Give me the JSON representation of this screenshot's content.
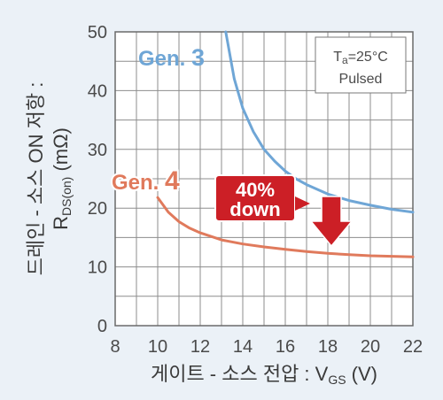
{
  "chart_data": {
    "type": "line",
    "xlabel": {
      "main": "게이트 - 소스 전압 : V",
      "sub": "GS",
      "unit": " (V)"
    },
    "ylabel": {
      "line1": "드레인 - 소스 ON 저항 :",
      "line2_main": "R",
      "line2_sub": "DS(on)",
      "line2_unit": " (mΩ)"
    },
    "xlim": [
      8,
      22
    ],
    "ylim": [
      0,
      50
    ],
    "xticks": [
      "8",
      "10",
      "12",
      "14",
      "16",
      "18",
      "20",
      "22"
    ],
    "yticks": [
      "0",
      "10",
      "20",
      "30",
      "40",
      "50"
    ],
    "grid": true,
    "series": [
      {
        "name": "Gen. 3",
        "name_text": "Gen. ",
        "name_num": "3",
        "color": "#6fa6d6",
        "x": [
          13.2,
          13.6,
          14.0,
          14.5,
          15.0,
          15.5,
          16.0,
          16.5,
          17.0,
          18.0,
          19.0,
          20.0,
          21.0,
          22.0
        ],
        "y": [
          50,
          42,
          37,
          33,
          30,
          28,
          26.3,
          25,
          24,
          22.4,
          21.3,
          20.5,
          19.8,
          19.3
        ]
      },
      {
        "name": "Gen. 4",
        "name_text": "Gen. ",
        "name_num": "4",
        "color": "#e07a5c",
        "x": [
          10.0,
          10.5,
          11.0,
          11.5,
          12.0,
          13.0,
          14.0,
          15.0,
          16.0,
          17.0,
          18.0,
          19.0,
          20.0,
          21.0,
          22.0
        ],
        "y": [
          21.8,
          19.3,
          17.7,
          16.6,
          15.8,
          14.6,
          13.9,
          13.4,
          13.0,
          12.6,
          12.3,
          12.1,
          11.9,
          11.8,
          11.7
        ]
      }
    ],
    "conditions": {
      "ta_main": "T",
      "ta_sub": "a",
      "ta_rest": "=25°C",
      "mode": "Pulsed"
    },
    "annotation": {
      "line1": "40%",
      "line2": "down",
      "color": "#cc1f26"
    }
  }
}
